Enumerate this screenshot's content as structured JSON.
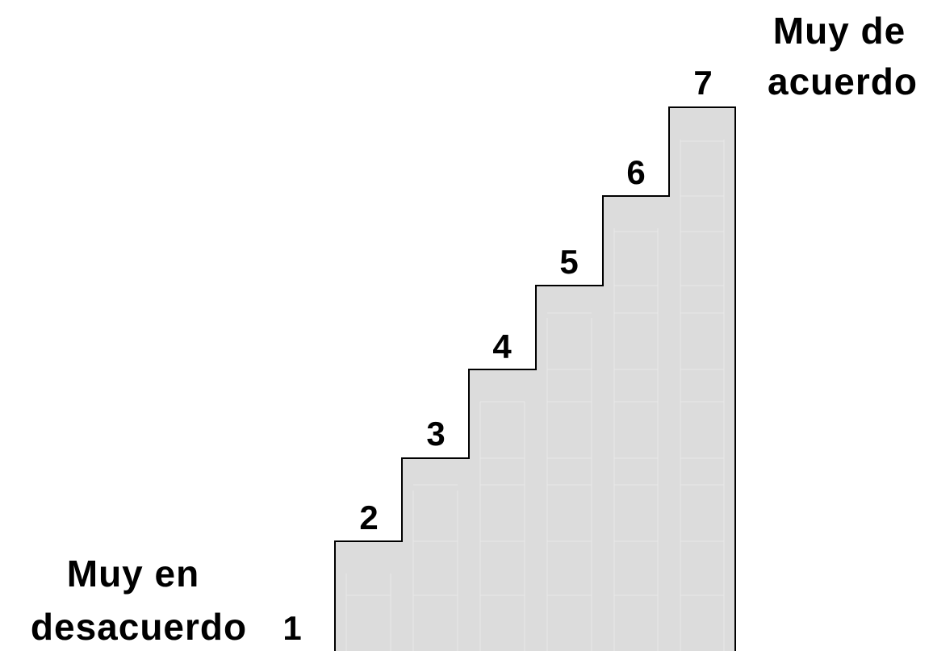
{
  "scale": {
    "steps": [
      "1",
      "2",
      "3",
      "4",
      "5",
      "6",
      "7"
    ],
    "min_label_line1": "Muy en",
    "min_label_line2": "desacuerdo",
    "max_label_line1": "Muy de",
    "max_label_line2": "acuerdo"
  },
  "colors": {
    "step_fill": "#dcdcdc",
    "step_grid": "#e8e8e8",
    "outline": "#000000",
    "text": "#000000"
  }
}
